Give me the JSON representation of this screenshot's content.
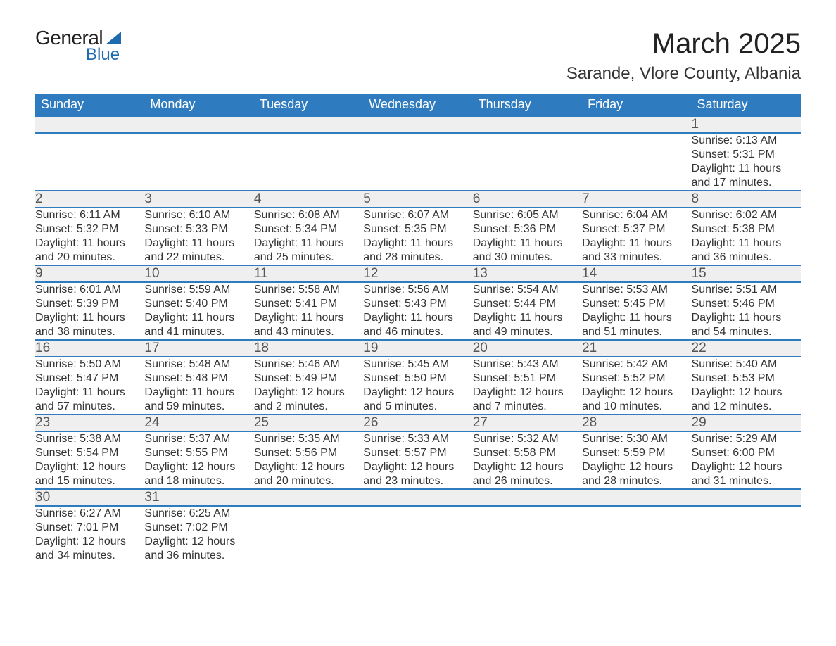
{
  "logo": {
    "word1": "General",
    "word2": "Blue"
  },
  "title": "March 2025",
  "location": "Sarande, Vlore County, Albania",
  "colors": {
    "header_bg": "#2e7bbf",
    "header_text": "#ffffff",
    "daynum_bg": "#efefef",
    "daynum_text": "#555555",
    "border": "#2e7bbf",
    "body_text": "#333333",
    "logo_blue": "#1f6bb0"
  },
  "day_headers": [
    "Sunday",
    "Monday",
    "Tuesday",
    "Wednesday",
    "Thursday",
    "Friday",
    "Saturday"
  ],
  "weeks": [
    [
      null,
      null,
      null,
      null,
      null,
      null,
      {
        "n": "1",
        "sunrise": "6:13 AM",
        "sunset": "5:31 PM",
        "dl1": "Daylight: 11 hours",
        "dl2": "and 17 minutes."
      }
    ],
    [
      {
        "n": "2",
        "sunrise": "6:11 AM",
        "sunset": "5:32 PM",
        "dl1": "Daylight: 11 hours",
        "dl2": "and 20 minutes."
      },
      {
        "n": "3",
        "sunrise": "6:10 AM",
        "sunset": "5:33 PM",
        "dl1": "Daylight: 11 hours",
        "dl2": "and 22 minutes."
      },
      {
        "n": "4",
        "sunrise": "6:08 AM",
        "sunset": "5:34 PM",
        "dl1": "Daylight: 11 hours",
        "dl2": "and 25 minutes."
      },
      {
        "n": "5",
        "sunrise": "6:07 AM",
        "sunset": "5:35 PM",
        "dl1": "Daylight: 11 hours",
        "dl2": "and 28 minutes."
      },
      {
        "n": "6",
        "sunrise": "6:05 AM",
        "sunset": "5:36 PM",
        "dl1": "Daylight: 11 hours",
        "dl2": "and 30 minutes."
      },
      {
        "n": "7",
        "sunrise": "6:04 AM",
        "sunset": "5:37 PM",
        "dl1": "Daylight: 11 hours",
        "dl2": "and 33 minutes."
      },
      {
        "n": "8",
        "sunrise": "6:02 AM",
        "sunset": "5:38 PM",
        "dl1": "Daylight: 11 hours",
        "dl2": "and 36 minutes."
      }
    ],
    [
      {
        "n": "9",
        "sunrise": "6:01 AM",
        "sunset": "5:39 PM",
        "dl1": "Daylight: 11 hours",
        "dl2": "and 38 minutes."
      },
      {
        "n": "10",
        "sunrise": "5:59 AM",
        "sunset": "5:40 PM",
        "dl1": "Daylight: 11 hours",
        "dl2": "and 41 minutes."
      },
      {
        "n": "11",
        "sunrise": "5:58 AM",
        "sunset": "5:41 PM",
        "dl1": "Daylight: 11 hours",
        "dl2": "and 43 minutes."
      },
      {
        "n": "12",
        "sunrise": "5:56 AM",
        "sunset": "5:43 PM",
        "dl1": "Daylight: 11 hours",
        "dl2": "and 46 minutes."
      },
      {
        "n": "13",
        "sunrise": "5:54 AM",
        "sunset": "5:44 PM",
        "dl1": "Daylight: 11 hours",
        "dl2": "and 49 minutes."
      },
      {
        "n": "14",
        "sunrise": "5:53 AM",
        "sunset": "5:45 PM",
        "dl1": "Daylight: 11 hours",
        "dl2": "and 51 minutes."
      },
      {
        "n": "15",
        "sunrise": "5:51 AM",
        "sunset": "5:46 PM",
        "dl1": "Daylight: 11 hours",
        "dl2": "and 54 minutes."
      }
    ],
    [
      {
        "n": "16",
        "sunrise": "5:50 AM",
        "sunset": "5:47 PM",
        "dl1": "Daylight: 11 hours",
        "dl2": "and 57 minutes."
      },
      {
        "n": "17",
        "sunrise": "5:48 AM",
        "sunset": "5:48 PM",
        "dl1": "Daylight: 11 hours",
        "dl2": "and 59 minutes."
      },
      {
        "n": "18",
        "sunrise": "5:46 AM",
        "sunset": "5:49 PM",
        "dl1": "Daylight: 12 hours",
        "dl2": "and 2 minutes."
      },
      {
        "n": "19",
        "sunrise": "5:45 AM",
        "sunset": "5:50 PM",
        "dl1": "Daylight: 12 hours",
        "dl2": "and 5 minutes."
      },
      {
        "n": "20",
        "sunrise": "5:43 AM",
        "sunset": "5:51 PM",
        "dl1": "Daylight: 12 hours",
        "dl2": "and 7 minutes."
      },
      {
        "n": "21",
        "sunrise": "5:42 AM",
        "sunset": "5:52 PM",
        "dl1": "Daylight: 12 hours",
        "dl2": "and 10 minutes."
      },
      {
        "n": "22",
        "sunrise": "5:40 AM",
        "sunset": "5:53 PM",
        "dl1": "Daylight: 12 hours",
        "dl2": "and 12 minutes."
      }
    ],
    [
      {
        "n": "23",
        "sunrise": "5:38 AM",
        "sunset": "5:54 PM",
        "dl1": "Daylight: 12 hours",
        "dl2": "and 15 minutes."
      },
      {
        "n": "24",
        "sunrise": "5:37 AM",
        "sunset": "5:55 PM",
        "dl1": "Daylight: 12 hours",
        "dl2": "and 18 minutes."
      },
      {
        "n": "25",
        "sunrise": "5:35 AM",
        "sunset": "5:56 PM",
        "dl1": "Daylight: 12 hours",
        "dl2": "and 20 minutes."
      },
      {
        "n": "26",
        "sunrise": "5:33 AM",
        "sunset": "5:57 PM",
        "dl1": "Daylight: 12 hours",
        "dl2": "and 23 minutes."
      },
      {
        "n": "27",
        "sunrise": "5:32 AM",
        "sunset": "5:58 PM",
        "dl1": "Daylight: 12 hours",
        "dl2": "and 26 minutes."
      },
      {
        "n": "28",
        "sunrise": "5:30 AM",
        "sunset": "5:59 PM",
        "dl1": "Daylight: 12 hours",
        "dl2": "and 28 minutes."
      },
      {
        "n": "29",
        "sunrise": "5:29 AM",
        "sunset": "6:00 PM",
        "dl1": "Daylight: 12 hours",
        "dl2": "and 31 minutes."
      }
    ],
    [
      {
        "n": "30",
        "sunrise": "6:27 AM",
        "sunset": "7:01 PM",
        "dl1": "Daylight: 12 hours",
        "dl2": "and 34 minutes."
      },
      {
        "n": "31",
        "sunrise": "6:25 AM",
        "sunset": "7:02 PM",
        "dl1": "Daylight: 12 hours",
        "dl2": "and 36 minutes."
      },
      null,
      null,
      null,
      null,
      null
    ]
  ],
  "labels": {
    "sunrise_prefix": "Sunrise: ",
    "sunset_prefix": "Sunset: "
  }
}
